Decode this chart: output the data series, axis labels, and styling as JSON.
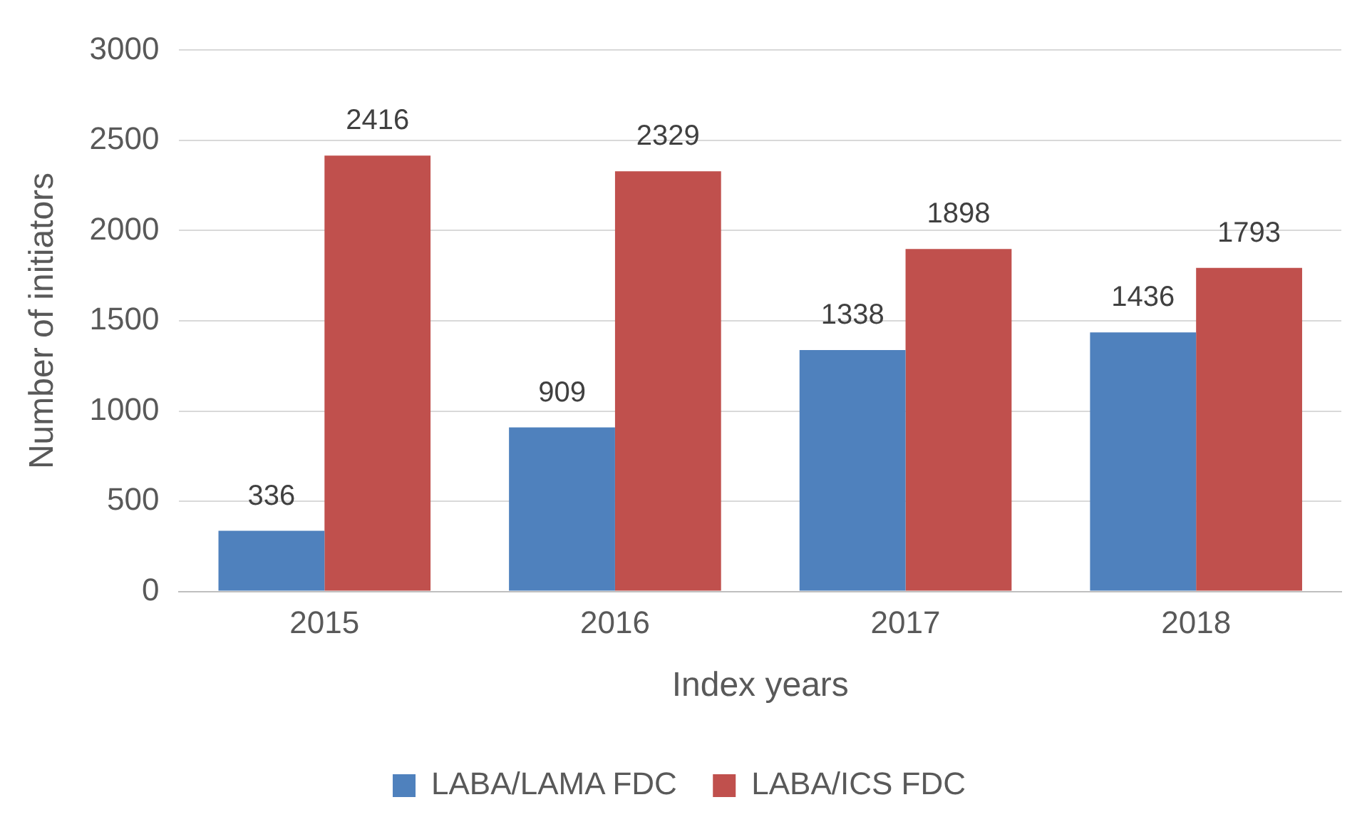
{
  "chart_data": {
    "type": "bar",
    "xlabel": "Index years",
    "ylabel": "Number of initiators",
    "categories": [
      "2015",
      "2016",
      "2017",
      "2018"
    ],
    "series": [
      {
        "name": "LABA/LAMA FDC",
        "color": "#4f81bd",
        "values": [
          336,
          909,
          1338,
          1436
        ]
      },
      {
        "name": "LABA/ICS FDC",
        "color": "#c0504d",
        "values": [
          2416,
          2329,
          1898,
          1793
        ]
      }
    ],
    "ylim": [
      0,
      3000
    ],
    "yticks": [
      0,
      500,
      1000,
      1500,
      2000,
      2500,
      3000
    ],
    "grid": "y",
    "legend": "bottom",
    "data_labels": true
  }
}
